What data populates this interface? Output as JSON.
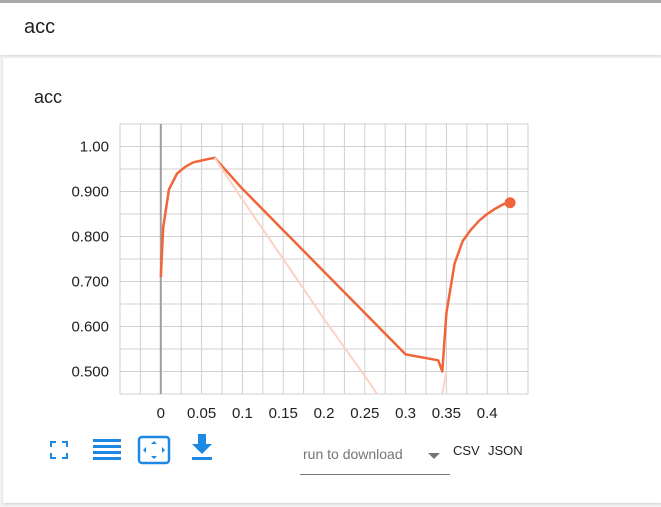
{
  "header": {
    "title": "acc"
  },
  "card": {
    "title": "acc",
    "toolbar": {
      "fullscreen_icon": "fullscreen-icon",
      "lines_icon": "list-lines-icon",
      "fit_icon": "fit-domain-icon",
      "download_icon": "download-icon"
    },
    "download_select": {
      "placeholder": "run to download"
    },
    "csv_label": "CSV",
    "json_label": "JSON"
  },
  "colors": {
    "series": "#f0663a",
    "series_faint": "#fbd3c4",
    "accent_icon": "#1e88e5",
    "grid": "#d0d0d0",
    "zero_axis": "#9e9e9e"
  },
  "chart_data": {
    "type": "line",
    "title": "",
    "xlabel": "",
    "ylabel": "",
    "xlim": [
      -0.05,
      0.45
    ],
    "ylim": [
      0.45,
      1.05
    ],
    "x_ticks": [
      "0",
      "0.05",
      "0.1",
      "0.15",
      "0.2",
      "0.25",
      "0.3",
      "0.35",
      "0.4"
    ],
    "y_ticks": [
      "1.00",
      "0.900",
      "0.800",
      "0.700",
      "0.600",
      "0.500"
    ],
    "grid": true,
    "series": [
      {
        "style": "smoothed",
        "x": [
          0,
          0.003,
          0.01,
          0.02,
          0.03,
          0.04,
          0.05,
          0.06,
          0.066,
          0.1,
          0.15,
          0.2,
          0.25,
          0.3,
          0.34,
          0.345,
          0.35,
          0.36,
          0.37,
          0.38,
          0.39,
          0.4,
          0.41,
          0.42,
          0.428
        ],
        "y": [
          0.71,
          0.82,
          0.905,
          0.94,
          0.955,
          0.965,
          0.969,
          0.973,
          0.975,
          0.906,
          0.814,
          0.722,
          0.63,
          0.538,
          0.525,
          0.5,
          0.63,
          0.74,
          0.79,
          0.815,
          0.835,
          0.85,
          0.862,
          0.872,
          0.875
        ]
      },
      {
        "style": "raw",
        "x": [
          0.066,
          0.1,
          0.15,
          0.2,
          0.25,
          0.28
        ],
        "y": [
          0.975,
          0.882,
          0.75,
          0.617,
          0.49,
          0.41
        ]
      },
      {
        "style": "raw",
        "x": [
          0.345,
          0.35
        ],
        "y": [
          0.45,
          0.5
        ]
      }
    ]
  }
}
